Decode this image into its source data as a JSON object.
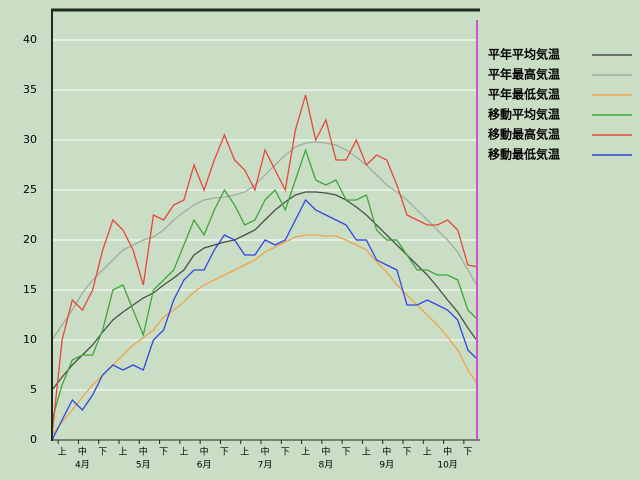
{
  "chart_data": {
    "type": "line",
    "categories": [
      null,
      "上",
      null,
      "中",
      null,
      "下",
      null,
      "上",
      null,
      "中",
      null,
      "下",
      null,
      "上",
      null,
      "中",
      null,
      "下",
      null,
      "上",
      null,
      "中",
      null,
      "下",
      null,
      "上",
      null,
      "中",
      null,
      "下",
      null,
      "上",
      null,
      "中",
      null,
      "下",
      null,
      "上",
      null,
      "中",
      null,
      "下",
      null
    ],
    "months": [
      "4月",
      "5月",
      "6月",
      "7月",
      "8月",
      "9月",
      "10月"
    ],
    "ylim": [
      0,
      43
    ],
    "yticks": [
      0,
      5,
      10,
      15,
      20,
      25,
      30,
      35,
      40
    ],
    "grid": true,
    "legend": "right",
    "series": [
      {
        "name": "平年平均気温",
        "color": "#4a4f48",
        "values": [
          5,
          6.3,
          7.5,
          8.5,
          9.5,
          10.8,
          12,
          12.8,
          13.5,
          14.2,
          14.7,
          15.5,
          16.2,
          17,
          18.5,
          19.2,
          19.5,
          19.8,
          20,
          20.5,
          21,
          22,
          23,
          23.8,
          24.5,
          24.8,
          24.8,
          24.7,
          24.5,
          24,
          23.3,
          22.5,
          21.5,
          20.5,
          19.5,
          18.5,
          17.5,
          16.5,
          15.3,
          14,
          12.8,
          11.2,
          9.8
        ]
      },
      {
        "name": "平年最高気温",
        "color": "#a3aca0",
        "values": [
          10,
          11.5,
          13,
          14.7,
          16,
          17,
          18,
          19,
          19.5,
          20,
          20.3,
          21,
          22,
          22.8,
          23.5,
          24,
          24.2,
          24.3,
          24.5,
          24.8,
          25.5,
          26.5,
          27.5,
          28.5,
          29.3,
          29.7,
          29.8,
          29.7,
          29.5,
          29,
          28.3,
          27.5,
          26.5,
          25.5,
          24.8,
          24,
          23,
          22,
          21,
          20,
          18.8,
          17,
          15.3
        ]
      },
      {
        "name": "平年最低気温",
        "color": "#eea44a",
        "values": [
          0.5,
          1.8,
          3,
          4.3,
          5.5,
          6.5,
          7.5,
          8.5,
          9.5,
          10.2,
          11,
          12.3,
          13,
          13.8,
          14.8,
          15.5,
          16,
          16.5,
          17,
          17.5,
          18,
          18.8,
          19.3,
          19.8,
          20.3,
          20.5,
          20.5,
          20.4,
          20.4,
          20,
          19.5,
          19,
          17.8,
          16.8,
          15.5,
          14.5,
          13.5,
          12.5,
          11.5,
          10.3,
          9,
          7,
          5.5
        ]
      },
      {
        "name": "移動平均気温",
        "color": "#3fa63a",
        "values": [
          2,
          5.5,
          8,
          8.5,
          8.5,
          11,
          15,
          15.5,
          13,
          10.5,
          15,
          16,
          17,
          19.5,
          22,
          20.5,
          23,
          25,
          23.5,
          21.5,
          22,
          24,
          25,
          23,
          26,
          29,
          26,
          25.5,
          26,
          24,
          24,
          24.5,
          21,
          20,
          20,
          18.5,
          17,
          17,
          16.5,
          16.5,
          16,
          13,
          12
        ]
      },
      {
        "name": "移動最高気温",
        "color": "#e5483a",
        "values": [
          0.5,
          10,
          14,
          13,
          15,
          19,
          22,
          21,
          19,
          15.5,
          22.5,
          22,
          23.5,
          24,
          27.5,
          25,
          28,
          30.5,
          28,
          27,
          25,
          29,
          27,
          25,
          31,
          34.5,
          30,
          32,
          28,
          28,
          30,
          27.5,
          28.5,
          28,
          25.5,
          22.5,
          22,
          21.5,
          21.5,
          22,
          21,
          17.5,
          17.3
        ]
      },
      {
        "name": "移動最低気温",
        "color": "#3346e0",
        "values": [
          0,
          2,
          4,
          3,
          4.5,
          6.5,
          7.5,
          7,
          7.5,
          7,
          10,
          11,
          14,
          16,
          17,
          17,
          19,
          20.5,
          20,
          18.5,
          18.5,
          20,
          19.5,
          20,
          22,
          24,
          23,
          22.5,
          22,
          21.5,
          20,
          20,
          18,
          17.5,
          17,
          13.5,
          13.5,
          14,
          13.5,
          13,
          12,
          9,
          8
        ]
      }
    ]
  }
}
